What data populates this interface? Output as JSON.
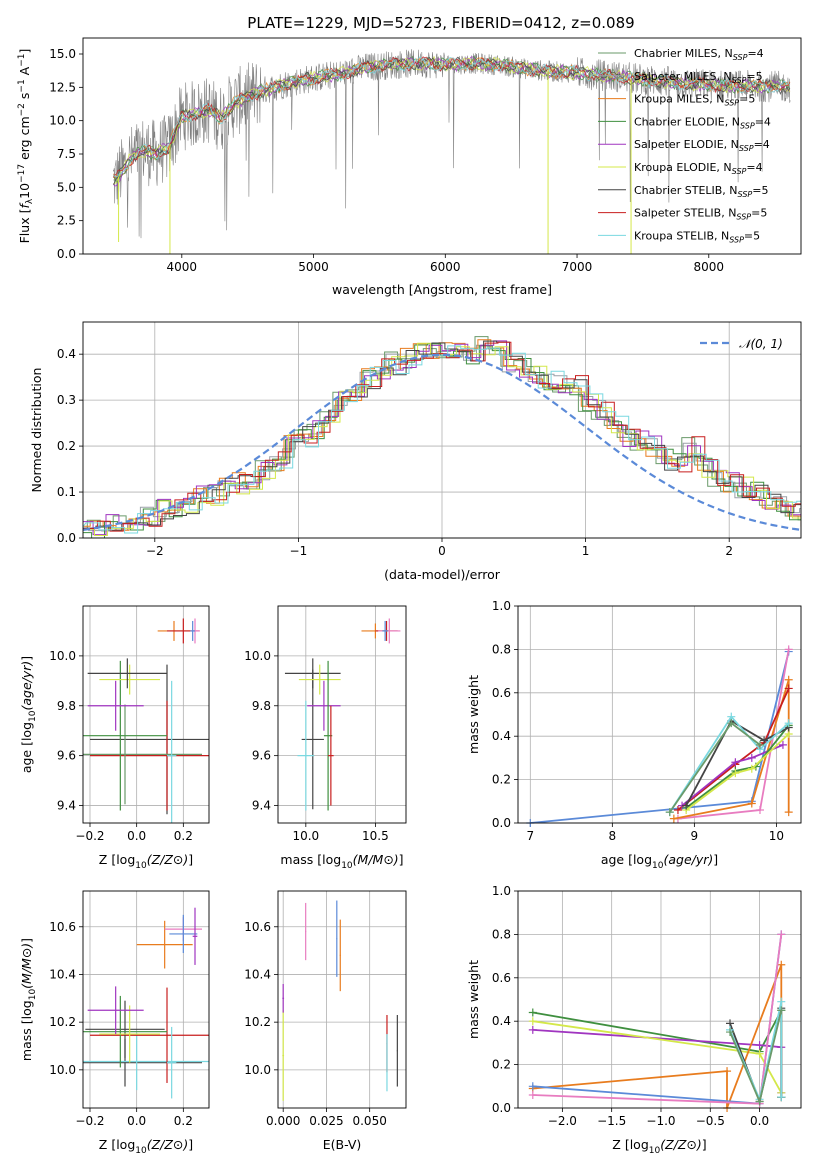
{
  "figure": {
    "title": "PLATE=1229, MJD=52723, FIBERID=0412, z=0.089"
  },
  "colors": {
    "Chabrier MILES": "#6a9a6a",
    "Salpeter MILES": "#9aa0a8",
    "Kroupa MILES": "#e87c1e",
    "Chabrier ELODIE": "#3f8f3f",
    "Salpeter ELODIE": "#a035c0",
    "Kroupa ELODIE": "#d4e84a",
    "Chabrier STELIB": "#444444",
    "Salpeter STELIB": "#c81e1e",
    "Kroupa STELIB": "#7ad8e0",
    "gaussian": "#5b8ad8",
    "pink": "#e87cc0",
    "blue": "#5b8ad8",
    "data": "#808080"
  },
  "chart_data": [
    {
      "id": "spectrum",
      "type": "line",
      "xlabel": "wavelength [Angstrom, rest frame]",
      "ylabel_parts": [
        "Flux [",
        "f",
        "λ",
        "10",
        "−17",
        " erg cm",
        "−2",
        " s",
        "−1",
        " A",
        "−1",
        "]"
      ],
      "xlim": [
        3250,
        8700
      ],
      "ylim": [
        0,
        16.2
      ],
      "xticks": [
        4000,
        5000,
        6000,
        7000,
        8000
      ],
      "yticks": [
        0.0,
        2.5,
        5.0,
        7.5,
        10.0,
        12.5,
        15.0
      ],
      "grid": false,
      "legend_placement": "right",
      "legend": [
        {
          "name": "Chabrier MILES",
          "nssp": "4"
        },
        {
          "name": "Salpeter MILES",
          "nssp": "5"
        },
        {
          "name": "Kroupa MILES",
          "nssp": "5"
        },
        {
          "name": "Chabrier ELODIE",
          "nssp": "4"
        },
        {
          "name": "Salpeter ELODIE",
          "nssp": "4"
        },
        {
          "name": "Kroupa ELODIE",
          "nssp": "4"
        },
        {
          "name": "Chabrier STELIB",
          "nssp": "5"
        },
        {
          "name": "Salpeter STELIB",
          "nssp": "5"
        },
        {
          "name": "Kroupa STELIB",
          "nssp": "5"
        }
      ],
      "continuum": {
        "x": [
          3500,
          3600,
          3700,
          3800,
          3900,
          4000,
          4100,
          4200,
          4300,
          4400,
          4500,
          4600,
          4800,
          5000,
          5200,
          5400,
          5600,
          5800,
          6000,
          6200,
          6400,
          6600,
          6800,
          7000,
          7200,
          7400,
          7600,
          7800,
          8000,
          8200,
          8400,
          8650
        ],
        "y": [
          5.5,
          7.0,
          7.8,
          7.5,
          8.0,
          10.3,
          10.5,
          10.8,
          10.2,
          11.3,
          11.8,
          12.2,
          12.8,
          13.2,
          13.5,
          14.0,
          14.2,
          14.3,
          14.2,
          14.3,
          14.2,
          13.9,
          13.7,
          13.6,
          13.4,
          13.2,
          13.0,
          12.8,
          12.7,
          12.6,
          12.6,
          12.5
        ]
      },
      "model_range": [
        3480,
        8620
      ],
      "dips": [
        {
          "x": 3520,
          "y": 0.9
        },
        {
          "x": 3910,
          "y": 0.0
        },
        {
          "x": 6780,
          "y": 0.0
        },
        {
          "x": 7410,
          "y": 0.0
        }
      ]
    },
    {
      "id": "residuals",
      "type": "area",
      "xlabel": "(data-model)/error",
      "ylabel": "Normed distribution",
      "xlim": [
        -2.5,
        2.5
      ],
      "ylim": [
        0,
        0.47
      ],
      "xticks": [
        -2,
        -1,
        0,
        1,
        2
      ],
      "yticks": [
        0.0,
        0.1,
        0.2,
        0.3,
        0.4
      ],
      "grid": true,
      "legend": "𝒩(0, 1)",
      "legend_placement": "top-right",
      "bin_width": 0.1,
      "base_hist": [
        0.018,
        0.022,
        0.03,
        0.035,
        0.04,
        0.05,
        0.06,
        0.07,
        0.075,
        0.09,
        0.095,
        0.11,
        0.12,
        0.13,
        0.15,
        0.17,
        0.2,
        0.22,
        0.24,
        0.26,
        0.3,
        0.32,
        0.35,
        0.37,
        0.38,
        0.39,
        0.4,
        0.405,
        0.41,
        0.405,
        0.4,
        0.42,
        0.405,
        0.38,
        0.37,
        0.35,
        0.34,
        0.33,
        0.33,
        0.3,
        0.28,
        0.25,
        0.22,
        0.21,
        0.2,
        0.17,
        0.16,
        0.2,
        0.15,
        0.13,
        0.12,
        0.11,
        0.1,
        0.08,
        0.07,
        0.06,
        0.05,
        0.045,
        0.04,
        0.035,
        0.025,
        0.02
      ]
    },
    {
      "id": "age_vs_Z",
      "type": "scatter",
      "xlabel": "Z [log10(Z/Z⊙)]",
      "ylabel": "age  [log10(age/yr)]",
      "xlim": [
        -0.23,
        0.31
      ],
      "ylim": [
        9.33,
        10.2
      ],
      "xticks": [
        -0.2,
        0.0,
        0.2
      ],
      "yticks": [
        9.4,
        9.6,
        9.8,
        10.0
      ],
      "grid": true,
      "points": [
        {
          "x": 0.13,
          "y": 9.665,
          "xerr": 0.33,
          "yerr": 0.3,
          "c": "Chabrier STELIB"
        },
        {
          "x": 0.13,
          "y": 9.6,
          "xerr": 0.33,
          "yerr": 0.22,
          "c": "Salpeter STELIB"
        },
        {
          "x": -0.05,
          "y": 9.605,
          "xerr": 0.33,
          "yerr": 0.2,
          "c": "Chabrier MILES"
        },
        {
          "x": -0.07,
          "y": 9.68,
          "xerr": 0.2,
          "yerr": 0.3,
          "c": "Chabrier ELODIE"
        },
        {
          "x": -0.03,
          "y": 9.905,
          "xerr": 0.13,
          "yerr": 0.06,
          "c": "Kroupa ELODIE"
        },
        {
          "x": -0.04,
          "y": 9.93,
          "xerr": 0.17,
          "yerr": 0.06,
          "c": "Chabrier STELIB"
        },
        {
          "x": -0.09,
          "y": 9.8,
          "xerr": 0.12,
          "yerr": 0.1,
          "c": "Salpeter ELODIE"
        },
        {
          "x": 0.15,
          "y": 9.6,
          "xerr": 0.02,
          "yerr": 0.3,
          "c": "Kroupa STELIB"
        },
        {
          "x": 0.16,
          "y": 10.1,
          "xerr": 0.07,
          "yerr": 0.04,
          "c": "Kroupa MILES"
        },
        {
          "x": 0.2,
          "y": 10.1,
          "xerr": 0.07,
          "yerr": 0.05,
          "c": "Salpeter STELIB"
        },
        {
          "x": 0.25,
          "y": 10.1,
          "xerr": 0.02,
          "yerr": 0.05,
          "c": "pink"
        },
        {
          "x": 0.24,
          "y": 10.1,
          "xerr": 0.01,
          "yerr": 0.04,
          "c": "blue"
        }
      ]
    },
    {
      "id": "age_vs_mass",
      "type": "scatter",
      "xlabel": "mass [log10(M/M⊙)]",
      "ylabel": "",
      "xlim": [
        9.8,
        10.72
      ],
      "ylim": [
        9.33,
        10.2
      ],
      "xticks": [
        10.0,
        10.5
      ],
      "yticks": [
        9.4,
        9.6,
        9.8,
        10.0
      ],
      "grid": true,
      "points": [
        {
          "x": 10.05,
          "y": 9.665,
          "xerr": 0.08,
          "yerr": 0.28,
          "c": "Chabrier STELIB"
        },
        {
          "x": 10.0,
          "y": 9.6,
          "xerr": 0.06,
          "yerr": 0.22,
          "c": "Kroupa STELIB"
        },
        {
          "x": 10.05,
          "y": 9.93,
          "xerr": 0.2,
          "yerr": 0.06,
          "c": "Chabrier STELIB"
        },
        {
          "x": 10.1,
          "y": 9.905,
          "xerr": 0.15,
          "yerr": 0.06,
          "c": "Kroupa ELODIE"
        },
        {
          "x": 10.13,
          "y": 9.8,
          "xerr": 0.12,
          "yerr": 0.1,
          "c": "Salpeter ELODIE"
        },
        {
          "x": 10.16,
          "y": 9.68,
          "xerr": 0.03,
          "yerr": 0.3,
          "c": "Chabrier ELODIE"
        },
        {
          "x": 10.18,
          "y": 9.6,
          "xerr": 0.02,
          "yerr": 0.2,
          "c": "Salpeter STELIB"
        },
        {
          "x": 10.5,
          "y": 10.1,
          "xerr": 0.1,
          "yerr": 0.03,
          "c": "Kroupa MILES"
        },
        {
          "x": 10.58,
          "y": 10.1,
          "xerr": 0.08,
          "yerr": 0.04,
          "c": "Salpeter STELIB"
        },
        {
          "x": 10.6,
          "y": 10.1,
          "xerr": 0.08,
          "yerr": 0.05,
          "c": "pink"
        },
        {
          "x": 10.57,
          "y": 10.1,
          "xerr": 0.02,
          "yerr": 0.04,
          "c": "blue"
        }
      ]
    },
    {
      "id": "massweight_vs_age",
      "type": "line",
      "xlabel": "age  [log10(age/yr)]",
      "ylabel": "mass weight",
      "xlim": [
        6.85,
        10.3
      ],
      "ylim": [
        0,
        1.0
      ],
      "xticks": [
        7,
        8,
        9,
        10
      ],
      "yticks": [
        0.0,
        0.2,
        0.4,
        0.6,
        0.8,
        1.0
      ],
      "grid": true,
      "series": [
        {
          "c": "blue",
          "x": [
            7.0,
            9.7,
            10.15
          ],
          "y": [
            0.0,
            0.1,
            0.79
          ]
        },
        {
          "c": "pink",
          "x": [
            8.8,
            9.8,
            10.15
          ],
          "y": [
            0.02,
            0.06,
            0.8
          ]
        },
        {
          "c": "Kroupa MILES",
          "x": [
            8.75,
            9.7,
            10.15,
            10.15
          ],
          "y": [
            0.02,
            0.09,
            0.66,
            0.05
          ]
        },
        {
          "c": "Salpeter STELIB",
          "x": [
            8.8,
            9.5,
            9.85,
            10.15
          ],
          "y": [
            0.06,
            0.27,
            0.37,
            0.62
          ]
        },
        {
          "c": "Salpeter ELODIE",
          "x": [
            8.85,
            9.5,
            9.7,
            10.08
          ],
          "y": [
            0.08,
            0.28,
            0.3,
            0.36
          ]
        },
        {
          "c": "Chabrier ELODIE",
          "x": [
            8.9,
            9.5,
            9.75,
            10.15
          ],
          "y": [
            0.07,
            0.24,
            0.26,
            0.45
          ]
        },
        {
          "c": "Kroupa ELODIE",
          "x": [
            8.9,
            9.5,
            9.7,
            10.15
          ],
          "y": [
            0.06,
            0.23,
            0.25,
            0.41
          ]
        },
        {
          "c": "Chabrier STELIB",
          "x": [
            8.9,
            9.45,
            9.85,
            10.15
          ],
          "y": [
            0.08,
            0.47,
            0.38,
            0.44
          ]
        },
        {
          "c": "Kroupa STELIB",
          "x": [
            8.7,
            9.45,
            9.8,
            10.15
          ],
          "y": [
            0.05,
            0.49,
            0.34,
            0.46
          ]
        },
        {
          "c": "Chabrier MILES",
          "x": [
            8.7,
            9.45,
            9.8
          ],
          "y": [
            0.05,
            0.46,
            0.36
          ]
        }
      ]
    },
    {
      "id": "mass_vs_Z",
      "type": "scatter",
      "xlabel": "Z [log10(Z/Z⊙)]",
      "ylabel": "mass [log10(M/M⊙)]",
      "xlim": [
        -0.23,
        0.31
      ],
      "ylim": [
        9.84,
        10.75
      ],
      "xticks": [
        -0.2,
        0.0,
        0.2
      ],
      "yticks": [
        10.0,
        10.2,
        10.4,
        10.6
      ],
      "grid": true,
      "points": [
        {
          "x": -0.05,
          "y": 10.03,
          "xerr": 0.33,
          "yerr": 0.1,
          "c": "Chabrier STELIB"
        },
        {
          "x": 0.0,
          "y": 10.035,
          "xerr": 0.33,
          "yerr": 0.12,
          "c": "Kroupa STELIB"
        },
        {
          "x": 0.13,
          "y": 10.145,
          "xerr": 0.33,
          "yerr": 0.2,
          "c": "Salpeter STELIB"
        },
        {
          "x": -0.05,
          "y": 10.17,
          "xerr": 0.17,
          "yerr": 0.12,
          "c": "Chabrier STELIB"
        },
        {
          "x": -0.07,
          "y": 10.16,
          "xerr": 0.2,
          "yerr": 0.15,
          "c": "Chabrier ELODIE"
        },
        {
          "x": -0.03,
          "y": 10.15,
          "xerr": 0.13,
          "yerr": 0.12,
          "c": "Kroupa ELODIE"
        },
        {
          "x": -0.09,
          "y": 10.25,
          "xerr": 0.12,
          "yerr": 0.1,
          "c": "Salpeter ELODIE"
        },
        {
          "x": 0.15,
          "y": 10.03,
          "xerr": 0.02,
          "yerr": 0.15,
          "c": "Kroupa STELIB"
        },
        {
          "x": 0.12,
          "y": 10.525,
          "xerr": 0.12,
          "yerr": 0.1,
          "c": "Kroupa MILES"
        },
        {
          "x": 0.2,
          "y": 10.59,
          "xerr": 0.08,
          "yerr": 0.05,
          "c": "pink"
        },
        {
          "x": 0.2,
          "y": 10.57,
          "xerr": 0.06,
          "yerr": 0.08,
          "c": "blue"
        },
        {
          "x": 0.25,
          "y": 10.56,
          "xerr": 0.01,
          "yerr": 0.12,
          "c": "Salpeter ELODIE"
        }
      ]
    },
    {
      "id": "mass_vs_EBV",
      "type": "scatter",
      "xlabel": "E(B-V)",
      "ylabel": "",
      "xlim": [
        -0.003,
        0.071
      ],
      "ylim": [
        9.84,
        10.75
      ],
      "xticks": [
        0.0,
        0.025,
        0.05
      ],
      "ytick_labels_x": [
        10.0,
        10.2,
        10.4,
        10.6
      ],
      "yticks": [
        10.0,
        10.2,
        10.4,
        10.6
      ],
      "grid": true,
      "points": [
        {
          "x": 0.0,
          "y": 10.06,
          "xerr": 0.0005,
          "yerr": 0.19,
          "c": "Kroupa ELODIE"
        },
        {
          "x": 0.0,
          "y": 10.3,
          "xerr": 0.0005,
          "yerr": 0.06,
          "c": "Salpeter ELODIE"
        },
        {
          "x": 0.013,
          "y": 10.58,
          "xerr": 0.0003,
          "yerr": 0.12,
          "c": "pink"
        },
        {
          "x": 0.031,
          "y": 10.55,
          "xerr": 0.0003,
          "yerr": 0.16,
          "c": "blue"
        },
        {
          "x": 0.033,
          "y": 10.48,
          "xerr": 0.0003,
          "yerr": 0.15,
          "c": "Kroupa MILES"
        },
        {
          "x": 0.06,
          "y": 10.11,
          "xerr": 0.0003,
          "yerr": 0.12,
          "c": "Salpeter STELIB"
        },
        {
          "x": 0.06,
          "y": 10.03,
          "xerr": 0.0003,
          "yerr": 0.12,
          "c": "Kroupa STELIB"
        },
        {
          "x": 0.066,
          "y": 10.08,
          "xerr": 0.0003,
          "yerr": 0.15,
          "c": "Chabrier STELIB"
        }
      ]
    },
    {
      "id": "massweight_vs_Z",
      "type": "line",
      "xlabel": "Z [log10(Z/Z⊙)]",
      "ylabel": "mass weight",
      "xlim": [
        -2.45,
        0.42
      ],
      "ylim": [
        0,
        1.0
      ],
      "xticks": [
        -2.0,
        -1.5,
        -1.0,
        -0.5,
        0.0
      ],
      "yticks": [
        0.0,
        0.2,
        0.4,
        0.6,
        0.8,
        1.0
      ],
      "grid": true,
      "series": [
        {
          "c": "Chabrier ELODIE",
          "x": [
            -2.3,
            0.0,
            0.22,
            0.22
          ],
          "y": [
            0.44,
            0.26,
            0.45,
            0.05
          ]
        },
        {
          "c": "Salpeter ELODIE",
          "x": [
            -2.3,
            0.0,
            0.22,
            0.22
          ],
          "y": [
            0.36,
            0.29,
            0.28,
            0.07
          ]
        },
        {
          "c": "Kroupa ELODIE",
          "x": [
            -2.3,
            0.0,
            0.22
          ],
          "y": [
            0.4,
            0.25,
            0.07
          ]
        },
        {
          "c": "Kroupa MILES",
          "x": [
            -2.3,
            -0.33,
            -0.33,
            0.22,
            0.22
          ],
          "y": [
            0.09,
            0.17,
            0.0,
            0.66,
            0.05
          ]
        },
        {
          "c": "blue",
          "x": [
            -2.3,
            0.0,
            0.22
          ],
          "y": [
            0.1,
            0.02,
            0.8
          ]
        },
        {
          "c": "pink",
          "x": [
            -2.3,
            0.0,
            0.22
          ],
          "y": [
            0.06,
            0.02,
            0.8
          ]
        },
        {
          "c": "Chabrier STELIB",
          "x": [
            -0.3,
            0.0,
            0.22,
            0.22
          ],
          "y": [
            0.39,
            0.03,
            0.46,
            0.05
          ]
        },
        {
          "c": "Kroupa STELIB",
          "x": [
            -0.3,
            0.0,
            0.22,
            0.22
          ],
          "y": [
            0.36,
            0.04,
            0.49,
            0.05
          ]
        },
        {
          "c": "Chabrier MILES",
          "x": [
            -0.3,
            0.0,
            0.22
          ],
          "y": [
            0.35,
            0.03,
            0.45
          ]
        }
      ]
    }
  ]
}
